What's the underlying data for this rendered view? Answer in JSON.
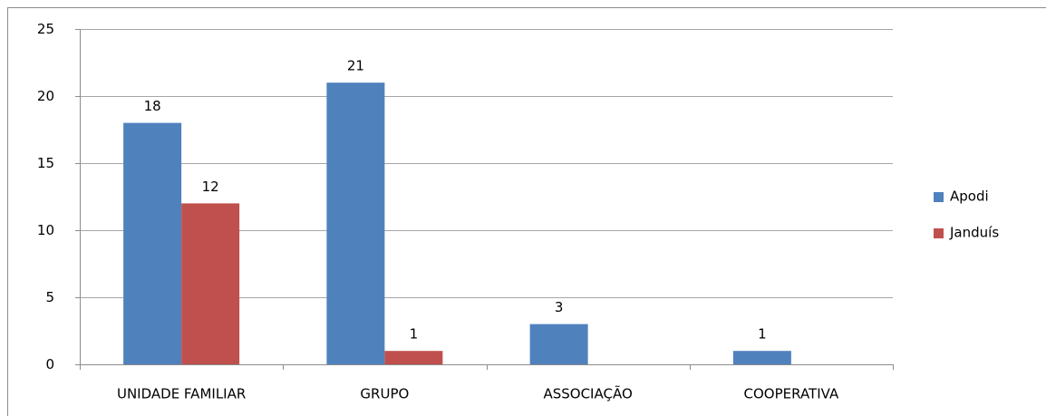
{
  "chart_data": {
    "type": "bar",
    "categories": [
      "UNIDADE FAMILIAR",
      "GRUPO",
      "ASSOCIAÇÃO",
      "COOPERATIVA"
    ],
    "series": [
      {
        "name": "Apodi",
        "color": "#4f81bd",
        "values": [
          18,
          21,
          3,
          1
        ]
      },
      {
        "name": "Janduís",
        "color": "#c0504d",
        "values": [
          12,
          1,
          null,
          null
        ]
      }
    ],
    "ylim": [
      0,
      25
    ],
    "yticks": [
      0,
      5,
      10,
      15,
      20,
      25
    ],
    "grid": true,
    "legend": "right"
  }
}
